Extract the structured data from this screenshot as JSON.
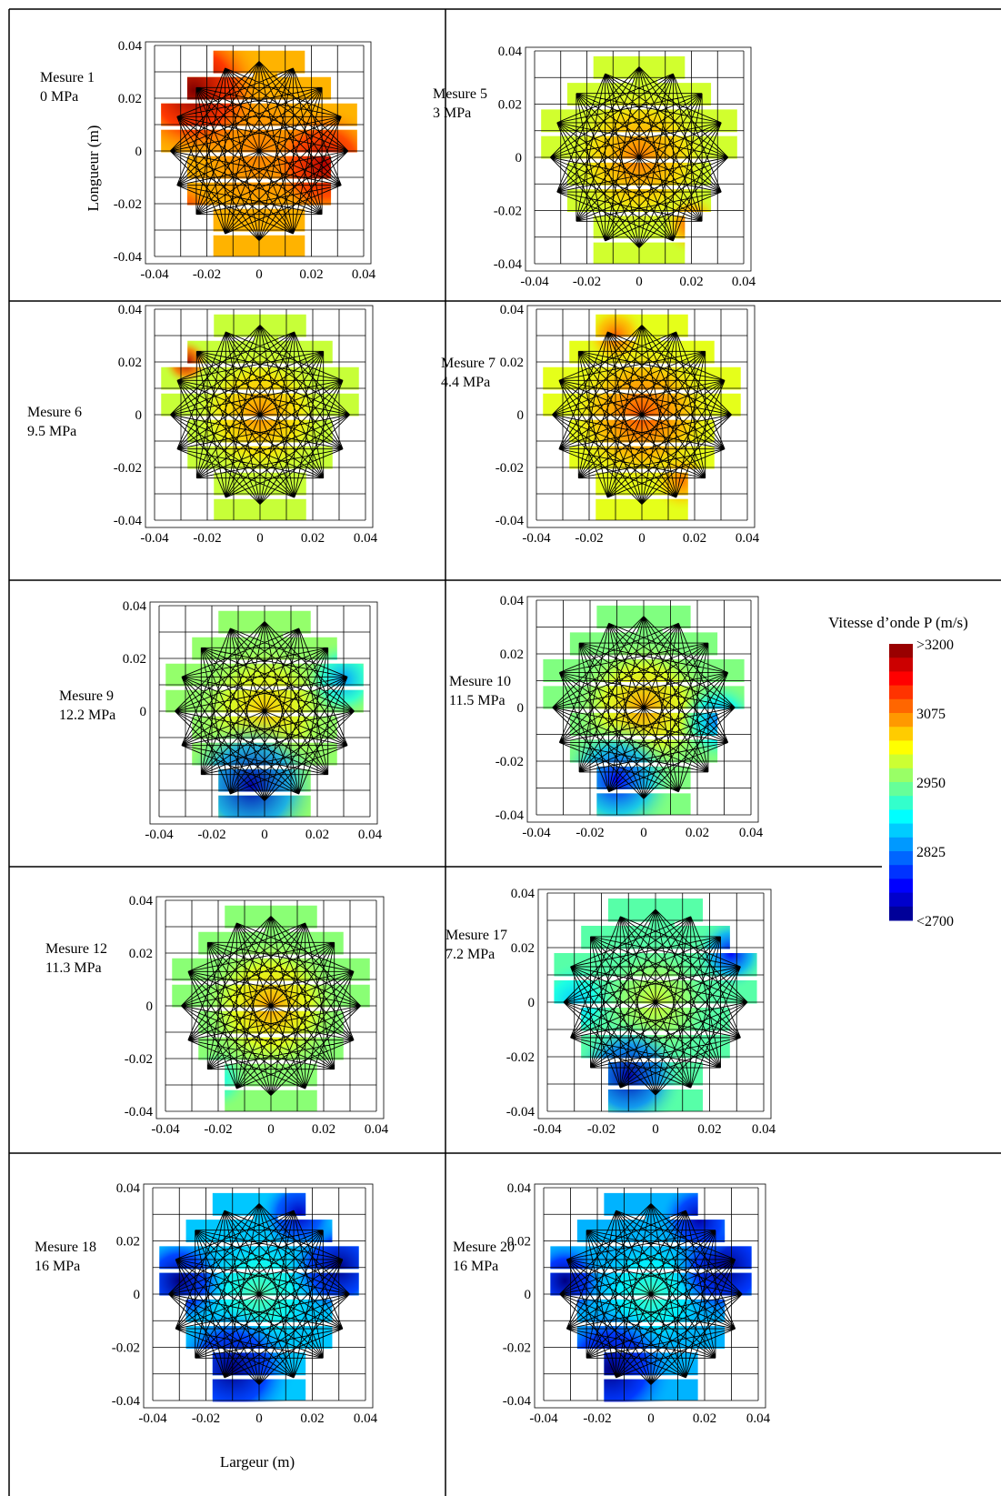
{
  "figure": {
    "ylabel": "Longueur (m)",
    "xlabel": "Largeur (m)"
  },
  "colorbar": {
    "title": "Vitesse d’onde P (m/s)",
    "labels": [
      ">3200",
      "3075",
      "2950",
      "2825",
      "<2700"
    ],
    "label_values": [
      3200,
      3075,
      2950,
      2825,
      2700
    ],
    "vmin": 2700,
    "vmax": 3200,
    "colormap": "jet"
  },
  "chart_data": [
    {
      "type": "heatmap",
      "name": "Mesure 1",
      "pressure": "0 MPa",
      "xlim": [
        -0.04,
        0.04
      ],
      "ylim": [
        -0.04,
        0.04
      ],
      "xticks": [
        "-0.04",
        "-0.02",
        "0",
        "0.02",
        "0.04"
      ],
      "yticks": [
        "0.04",
        "0.02",
        "0",
        "-0.02",
        "-0.04"
      ],
      "base_velocity": 3050,
      "center_velocity": 3075,
      "center_radius": 0.02,
      "anomalies": [
        {
          "x": -0.025,
          "y": 0.023,
          "radius": 0.018,
          "velocity": 3200
        },
        {
          "x": 0.025,
          "y": -0.005,
          "radius": 0.015,
          "velocity": 3175
        },
        {
          "x": -0.03,
          "y": -0.025,
          "radius": 0.01,
          "velocity": 3125
        }
      ]
    },
    {
      "type": "heatmap",
      "name": "Mesure 5",
      "pressure": "3 MPa",
      "xlim": [
        -0.04,
        0.04
      ],
      "ylim": [
        -0.04,
        0.04
      ],
      "xticks": [
        "-0.04",
        "-0.02",
        "0",
        "0.02",
        "0.04"
      ],
      "yticks": [
        "0.04",
        "0.02",
        "0",
        "-0.02",
        "-0.04"
      ],
      "base_velocity": 2990,
      "center_velocity": 3080,
      "center_radius": 0.02,
      "anomalies": [
        {
          "x": 0.02,
          "y": -0.025,
          "radius": 0.008,
          "velocity": 3100
        }
      ]
    },
    {
      "type": "heatmap",
      "name": "Mesure 6",
      "pressure": "9.5 MPa",
      "xlim": [
        -0.04,
        0.04
      ],
      "ylim": [
        -0.04,
        0.04
      ],
      "xticks": [
        "-0.04",
        "-0.02",
        "0",
        "0.02",
        "0.04"
      ],
      "yticks": [
        "0.04",
        "0.02",
        "0",
        "-0.02",
        "-0.04"
      ],
      "base_velocity": 2985,
      "center_velocity": 3070,
      "center_radius": 0.018,
      "anomalies": [
        {
          "x": -0.028,
          "y": 0.02,
          "radius": 0.006,
          "velocity": 3180
        }
      ]
    },
    {
      "type": "heatmap",
      "name": "Mesure 7",
      "pressure": "4.4 MPa",
      "xlim": [
        -0.04,
        0.04
      ],
      "ylim": [
        -0.04,
        0.04
      ],
      "xticks": [
        "-0.04",
        "-0.02",
        "0",
        "0.02",
        "0.04"
      ],
      "yticks": [
        "0.04",
        "0.02",
        "0",
        "-0.02",
        "-0.04"
      ],
      "base_velocity": 3000,
      "center_velocity": 3100,
      "center_radius": 0.02,
      "anomalies": [
        {
          "x": -0.01,
          "y": 0.03,
          "radius": 0.008,
          "velocity": 3090
        },
        {
          "x": 0.015,
          "y": -0.025,
          "radius": 0.008,
          "velocity": 3080
        }
      ]
    },
    {
      "type": "heatmap",
      "name": "Mesure 9",
      "pressure": "12.2 MPa",
      "xlim": [
        -0.04,
        0.04
      ],
      "ylim": [
        -0.04,
        0.04
      ],
      "xticks": [
        "-0.04",
        "-0.02",
        "0",
        "0.02",
        "0.04"
      ],
      "yticks": [
        "0.04",
        "0.02",
        "0"
      ],
      "base_velocity": 2960,
      "center_velocity": 3040,
      "center_radius": 0.018,
      "anomalies": [
        {
          "x": -0.005,
          "y": -0.028,
          "radius": 0.018,
          "velocity": 2720
        },
        {
          "x": 0.03,
          "y": 0.012,
          "radius": 0.01,
          "velocity": 2840
        }
      ]
    },
    {
      "type": "heatmap",
      "name": "Mesure 10",
      "pressure": "11.5 MPa",
      "xlim": [
        -0.04,
        0.04
      ],
      "ylim": [
        -0.04,
        0.04
      ],
      "xticks": [
        "-0.04",
        "-0.02",
        "0",
        "0.02",
        "0.04"
      ],
      "yticks": [
        "0.04",
        "0.02",
        "0",
        "-0.02",
        "-0.04"
      ],
      "base_velocity": 2950,
      "center_velocity": 3060,
      "center_radius": 0.018,
      "anomalies": [
        {
          "x": -0.01,
          "y": -0.027,
          "radius": 0.015,
          "velocity": 2760
        },
        {
          "x": 0.028,
          "y": -0.005,
          "radius": 0.01,
          "velocity": 2820
        }
      ]
    },
    {
      "type": "heatmap",
      "name": "Mesure 12",
      "pressure": "11.3 MPa",
      "xlim": [
        -0.04,
        0.04
      ],
      "ylim": [
        -0.04,
        0.04
      ],
      "xticks": [
        "-0.04",
        "-0.02",
        "0",
        "0.02",
        "0.04"
      ],
      "yticks": [
        "0.04",
        "0.02",
        "0",
        "-0.02",
        "-0.04"
      ],
      "base_velocity": 2955,
      "center_velocity": 3060,
      "center_radius": 0.018,
      "anomalies": [
        {
          "x": -0.02,
          "y": -0.028,
          "radius": 0.008,
          "velocity": 2890
        }
      ]
    },
    {
      "type": "heatmap",
      "name": "Mesure 17",
      "pressure": "7.2 MPa",
      "xlim": [
        -0.04,
        0.04
      ],
      "ylim": [
        -0.04,
        0.04
      ],
      "xticks": [
        "-0.04",
        "-0.02",
        "0",
        "0.02",
        "0.04"
      ],
      "yticks": [
        "0.04",
        "0.02",
        "0",
        "-0.02",
        "-0.04"
      ],
      "base_velocity": 2930,
      "center_velocity": 2990,
      "center_radius": 0.015,
      "anomalies": [
        {
          "x": -0.01,
          "y": -0.027,
          "radius": 0.014,
          "velocity": 2720
        },
        {
          "x": 0.028,
          "y": 0.018,
          "radius": 0.009,
          "velocity": 2760
        },
        {
          "x": -0.03,
          "y": 0.0,
          "radius": 0.01,
          "velocity": 2860
        }
      ]
    },
    {
      "type": "heatmap",
      "name": "Mesure 18",
      "pressure": "16 MPa",
      "xlim": [
        -0.04,
        0.04
      ],
      "ylim": [
        -0.04,
        0.04
      ],
      "xticks": [
        "-0.04",
        "-0.02",
        "0",
        "0.02",
        "0.04"
      ],
      "yticks": [
        "0.04",
        "0.02",
        "0",
        "-0.02",
        "-0.04"
      ],
      "base_velocity": 2860,
      "center_velocity": 2930,
      "center_radius": 0.015,
      "anomalies": [
        {
          "x": -0.01,
          "y": -0.028,
          "radius": 0.016,
          "velocity": 2700
        },
        {
          "x": -0.03,
          "y": 0.005,
          "radius": 0.012,
          "velocity": 2700
        },
        {
          "x": 0.03,
          "y": 0.01,
          "radius": 0.013,
          "velocity": 2700
        },
        {
          "x": 0.015,
          "y": 0.03,
          "radius": 0.01,
          "velocity": 2730
        }
      ]
    },
    {
      "type": "heatmap",
      "name": "Mesure 20",
      "pressure": "16 MPa",
      "xlim": [
        -0.04,
        0.04
      ],
      "ylim": [
        -0.04,
        0.04
      ],
      "xticks": [
        "-0.04",
        "-0.02",
        "0",
        "0.02",
        "0.04"
      ],
      "yticks": [
        "0.04",
        "0.02",
        "0",
        "-0.02",
        "-0.04"
      ],
      "base_velocity": 2850,
      "center_velocity": 2920,
      "center_radius": 0.015,
      "anomalies": [
        {
          "x": -0.015,
          "y": -0.028,
          "radius": 0.016,
          "velocity": 2700
        },
        {
          "x": -0.032,
          "y": 0.005,
          "radius": 0.01,
          "velocity": 2700
        },
        {
          "x": 0.028,
          "y": 0.01,
          "radius": 0.014,
          "velocity": 2700
        },
        {
          "x": 0.018,
          "y": 0.028,
          "radius": 0.01,
          "velocity": 2720
        }
      ]
    }
  ]
}
